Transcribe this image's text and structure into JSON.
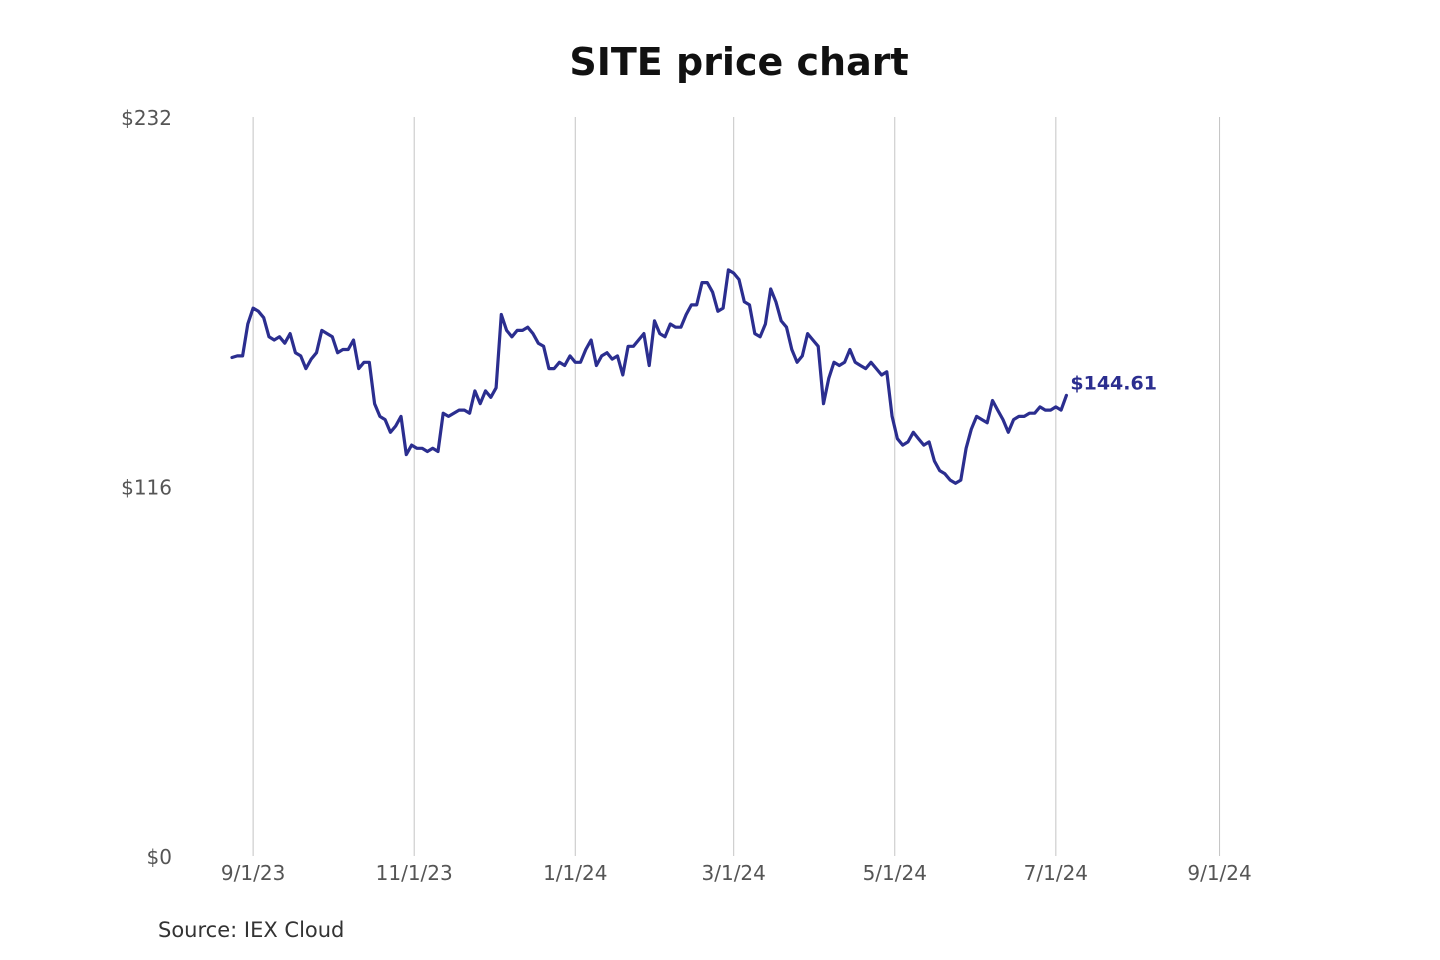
{
  "chart_data": {
    "type": "line",
    "title": "SITE price chart",
    "source": "Source: IEX Cloud",
    "xlabel": "",
    "ylabel": "",
    "y_ticks": [
      "$232",
      "$116",
      "$0"
    ],
    "y_tick_values": [
      232,
      116,
      0
    ],
    "ylim": [
      0,
      232
    ],
    "x_ticks": [
      "9/1/23",
      "11/1/23",
      "1/1/24",
      "3/1/24",
      "5/1/24",
      "7/1/24",
      "9/1/24"
    ],
    "x_tick_dates": [
      "2023-09-01",
      "2023-11-01",
      "2024-01-01",
      "2024-03-01",
      "2024-05-01",
      "2024-07-01",
      "2024-09-01"
    ],
    "xlim": [
      "2023-08-24",
      "2024-09-22"
    ],
    "grid": "vertical",
    "line_color": "#2b2e8f",
    "end_label": "$144.61",
    "series": [
      {
        "points": [
          [
            "2023-08-24",
            156.5
          ],
          [
            "2023-08-26",
            157
          ],
          [
            "2023-08-28",
            157
          ],
          [
            "2023-08-30",
            167
          ],
          [
            "2023-09-01",
            172
          ],
          [
            "2023-09-03",
            171
          ],
          [
            "2023-09-05",
            169
          ],
          [
            "2023-09-07",
            163
          ],
          [
            "2023-09-09",
            162
          ],
          [
            "2023-09-11",
            163
          ],
          [
            "2023-09-13",
            161
          ],
          [
            "2023-09-15",
            164
          ],
          [
            "2023-09-17",
            158
          ],
          [
            "2023-09-19",
            157
          ],
          [
            "2023-09-21",
            153
          ],
          [
            "2023-09-23",
            156
          ],
          [
            "2023-09-25",
            158
          ],
          [
            "2023-09-27",
            165
          ],
          [
            "2023-09-29",
            164
          ],
          [
            "2023-10-01",
            163
          ],
          [
            "2023-10-03",
            158
          ],
          [
            "2023-10-05",
            159
          ],
          [
            "2023-10-07",
            159
          ],
          [
            "2023-10-09",
            162
          ],
          [
            "2023-10-11",
            153
          ],
          [
            "2023-10-13",
            155
          ],
          [
            "2023-10-15",
            155
          ],
          [
            "2023-10-17",
            142
          ],
          [
            "2023-10-19",
            138
          ],
          [
            "2023-10-21",
            137
          ],
          [
            "2023-10-23",
            133
          ],
          [
            "2023-10-25",
            135
          ],
          [
            "2023-10-27",
            138
          ],
          [
            "2023-10-29",
            126
          ],
          [
            "2023-10-31",
            129
          ],
          [
            "2023-11-02",
            128
          ],
          [
            "2023-11-04",
            128
          ],
          [
            "2023-11-06",
            127
          ],
          [
            "2023-11-08",
            128
          ],
          [
            "2023-11-10",
            127
          ],
          [
            "2023-11-12",
            139
          ],
          [
            "2023-11-14",
            138
          ],
          [
            "2023-11-16",
            139
          ],
          [
            "2023-11-18",
            140
          ],
          [
            "2023-11-20",
            140
          ],
          [
            "2023-11-22",
            139
          ],
          [
            "2023-11-24",
            146
          ],
          [
            "2023-11-26",
            142
          ],
          [
            "2023-11-28",
            146
          ],
          [
            "2023-11-30",
            144
          ],
          [
            "2023-12-02",
            147
          ],
          [
            "2023-12-04",
            170
          ],
          [
            "2023-12-06",
            165
          ],
          [
            "2023-12-08",
            163
          ],
          [
            "2023-12-10",
            165
          ],
          [
            "2023-12-12",
            165
          ],
          [
            "2023-12-14",
            166
          ],
          [
            "2023-12-16",
            164
          ],
          [
            "2023-12-18",
            161
          ],
          [
            "2023-12-20",
            160
          ],
          [
            "2023-12-22",
            153
          ],
          [
            "2023-12-24",
            153
          ],
          [
            "2023-12-26",
            155
          ],
          [
            "2023-12-28",
            154
          ],
          [
            "2023-12-30",
            157
          ],
          [
            "2024-01-01",
            155
          ],
          [
            "2024-01-03",
            155
          ],
          [
            "2024-01-05",
            159
          ],
          [
            "2024-01-07",
            162
          ],
          [
            "2024-01-09",
            154
          ],
          [
            "2024-01-11",
            157
          ],
          [
            "2024-01-13",
            158
          ],
          [
            "2024-01-15",
            156
          ],
          [
            "2024-01-17",
            157
          ],
          [
            "2024-01-19",
            151
          ],
          [
            "2024-01-21",
            160
          ],
          [
            "2024-01-23",
            160
          ],
          [
            "2024-01-25",
            162
          ],
          [
            "2024-01-27",
            164
          ],
          [
            "2024-01-29",
            154
          ],
          [
            "2024-01-31",
            168
          ],
          [
            "2024-02-02",
            164
          ],
          [
            "2024-02-04",
            163
          ],
          [
            "2024-02-06",
            167
          ],
          [
            "2024-02-08",
            166
          ],
          [
            "2024-02-10",
            166
          ],
          [
            "2024-02-12",
            170
          ],
          [
            "2024-02-14",
            173
          ],
          [
            "2024-02-16",
            173
          ],
          [
            "2024-02-18",
            180
          ],
          [
            "2024-02-20",
            180
          ],
          [
            "2024-02-22",
            177
          ],
          [
            "2024-02-24",
            171
          ],
          [
            "2024-02-26",
            172
          ],
          [
            "2024-02-28",
            184
          ],
          [
            "2024-03-01",
            183
          ],
          [
            "2024-03-03",
            181
          ],
          [
            "2024-03-05",
            174
          ],
          [
            "2024-03-07",
            173
          ],
          [
            "2024-03-09",
            164
          ],
          [
            "2024-03-11",
            163
          ],
          [
            "2024-03-13",
            167
          ],
          [
            "2024-03-15",
            178
          ],
          [
            "2024-03-17",
            174
          ],
          [
            "2024-03-19",
            168
          ],
          [
            "2024-03-21",
            166
          ],
          [
            "2024-03-23",
            159
          ],
          [
            "2024-03-25",
            155
          ],
          [
            "2024-03-27",
            157
          ],
          [
            "2024-03-29",
            164
          ],
          [
            "2024-03-31",
            162
          ],
          [
            "2024-04-02",
            160
          ],
          [
            "2024-04-04",
            142
          ],
          [
            "2024-04-06",
            150
          ],
          [
            "2024-04-08",
            155
          ],
          [
            "2024-04-10",
            154
          ],
          [
            "2024-04-12",
            155
          ],
          [
            "2024-04-14",
            159
          ],
          [
            "2024-04-16",
            155
          ],
          [
            "2024-04-18",
            154
          ],
          [
            "2024-04-20",
            153
          ],
          [
            "2024-04-22",
            155
          ],
          [
            "2024-04-24",
            153
          ],
          [
            "2024-04-26",
            151
          ],
          [
            "2024-04-28",
            152
          ],
          [
            "2024-04-30",
            138
          ],
          [
            "2024-05-02",
            131
          ],
          [
            "2024-05-04",
            129
          ],
          [
            "2024-05-06",
            130
          ],
          [
            "2024-05-08",
            133
          ],
          [
            "2024-05-10",
            131
          ],
          [
            "2024-05-12",
            129
          ],
          [
            "2024-05-14",
            130
          ],
          [
            "2024-05-16",
            124
          ],
          [
            "2024-05-18",
            121
          ],
          [
            "2024-05-20",
            120
          ],
          [
            "2024-05-22",
            118
          ],
          [
            "2024-05-24",
            117
          ],
          [
            "2024-05-26",
            118
          ],
          [
            "2024-05-28",
            128
          ],
          [
            "2024-05-30",
            134
          ],
          [
            "2024-06-01",
            138
          ],
          [
            "2024-06-03",
            137
          ],
          [
            "2024-06-05",
            136
          ],
          [
            "2024-06-07",
            143
          ],
          [
            "2024-06-09",
            140
          ],
          [
            "2024-06-11",
            137
          ],
          [
            "2024-06-13",
            133
          ],
          [
            "2024-06-15",
            137
          ],
          [
            "2024-06-17",
            138
          ],
          [
            "2024-06-19",
            138
          ],
          [
            "2024-06-21",
            139
          ],
          [
            "2024-06-23",
            139
          ],
          [
            "2024-06-25",
            141
          ],
          [
            "2024-06-27",
            140
          ],
          [
            "2024-06-29",
            140
          ],
          [
            "2024-07-01",
            141
          ],
          [
            "2024-07-03",
            140
          ],
          [
            "2024-07-05",
            144.61
          ]
        ]
      }
    ]
  }
}
